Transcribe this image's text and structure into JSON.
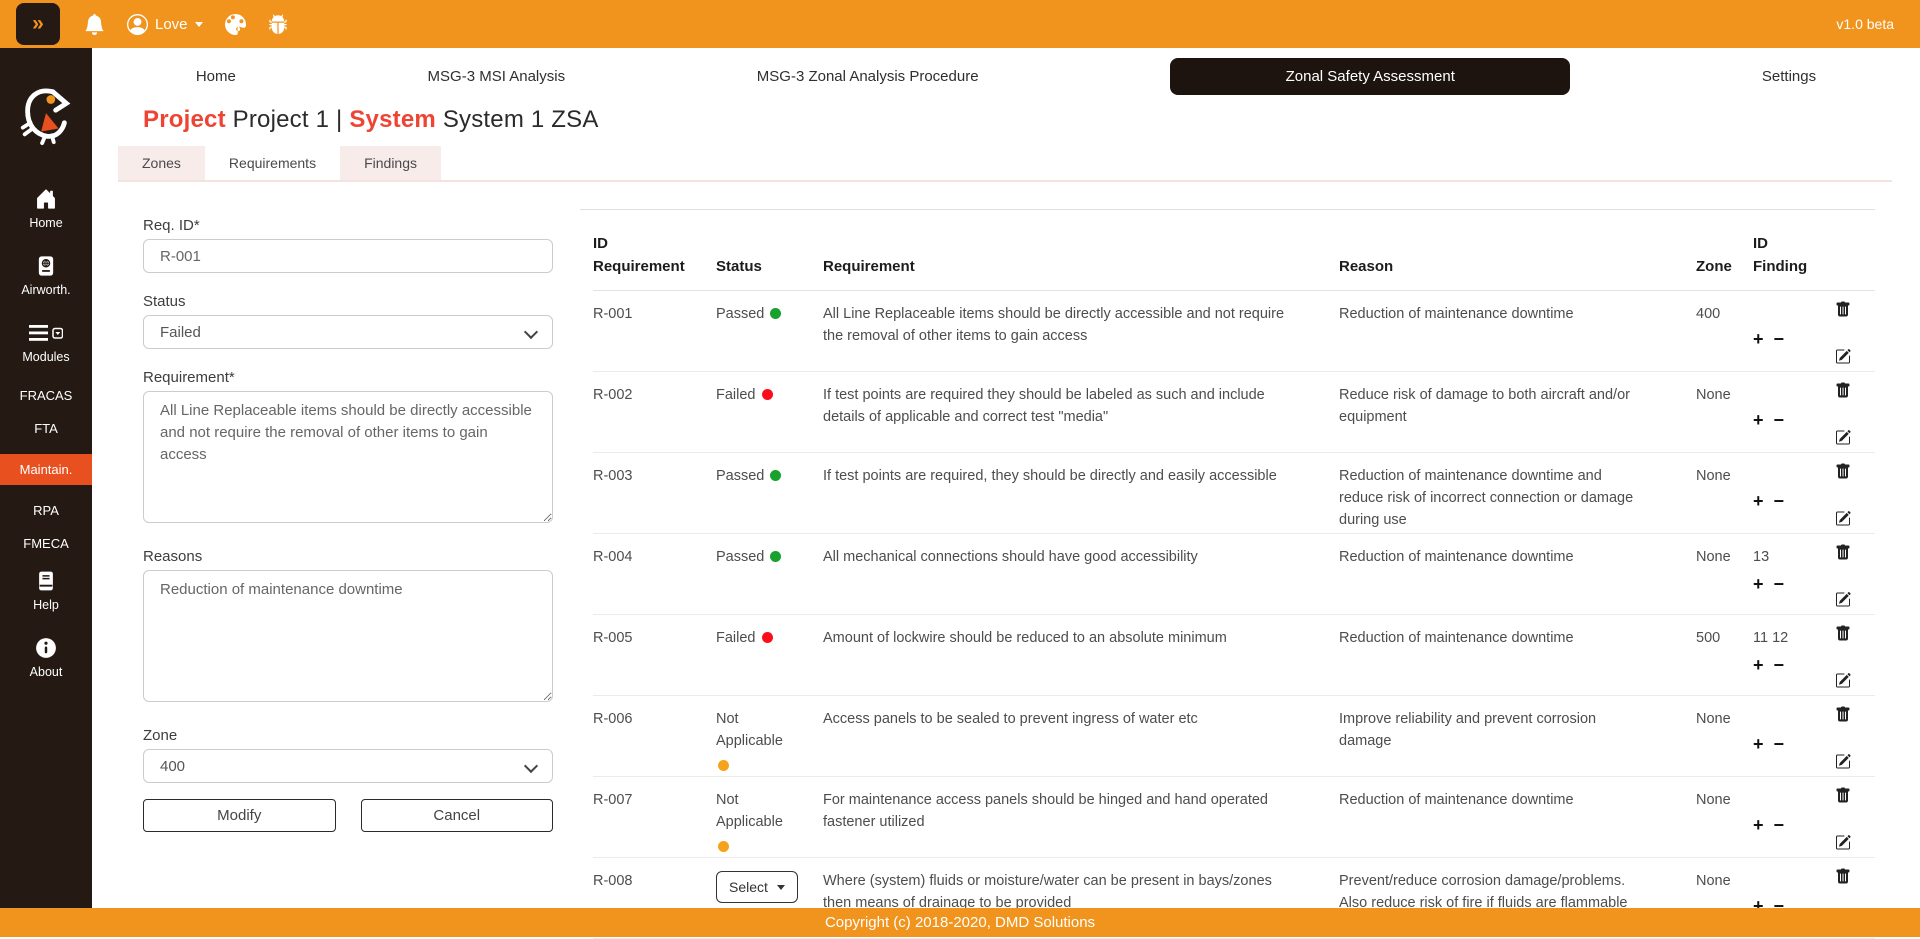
{
  "topbar": {
    "expand_label": "»",
    "user_name": "Love",
    "version": "v1.0 beta"
  },
  "nav": {
    "items": [
      {
        "label": "Home",
        "active": false
      },
      {
        "label": "MSG-3 MSI Analysis",
        "active": false
      },
      {
        "label": "MSG-3 Zonal Analysis Procedure",
        "active": false
      },
      {
        "label": "Zonal Safety Assessment",
        "active": true
      },
      {
        "label": "Settings",
        "active": false
      }
    ]
  },
  "sidebar": {
    "items": [
      {
        "label": "Home",
        "icon": "home-icon",
        "active": false
      },
      {
        "label": "Airworth.",
        "icon": "passport-icon",
        "active": false
      },
      {
        "label": "Modules",
        "icon": "menu-icon",
        "active": false
      },
      {
        "label": "FRACAS",
        "icon": null,
        "active": false
      },
      {
        "label": "FTA",
        "icon": null,
        "active": false
      },
      {
        "label": "Maintain.",
        "icon": null,
        "active": true
      },
      {
        "label": "RPA",
        "icon": null,
        "active": false
      },
      {
        "label": "FMECA",
        "icon": null,
        "active": false
      },
      {
        "label": "Help",
        "icon": "book-icon",
        "active": false
      },
      {
        "label": "About",
        "icon": "info-icon",
        "active": false
      }
    ]
  },
  "page_header": {
    "project_label": "Project",
    "project_value": "Project 1",
    "separator": "|",
    "system_label": "System",
    "system_value": "System 1 ZSA"
  },
  "tabs": [
    {
      "label": "Zones",
      "active": false
    },
    {
      "label": "Requirements",
      "active": true
    },
    {
      "label": "Findings",
      "active": false
    }
  ],
  "form": {
    "req_id_label": "Req. ID*",
    "req_id_value": "R-001",
    "status_label": "Status",
    "status_value": "Failed",
    "requirement_label": "Requirement*",
    "requirement_value": "All Line Replaceable items should be directly accessible and not require the removal of other items to gain access",
    "reasons_label": "Reasons",
    "reasons_value": "Reduction of maintenance downtime",
    "zone_label": "Zone",
    "zone_value": "400",
    "modify_label": "Modify",
    "cancel_label": "Cancel"
  },
  "table": {
    "headers": {
      "id_requirement": [
        "ID",
        "Requirement"
      ],
      "status": "Status",
      "requirement": "Requirement",
      "reason": "Reason",
      "zone": "Zone",
      "id_finding": [
        "ID",
        "Finding"
      ]
    },
    "actions": {
      "add": "+",
      "remove": "−",
      "select_label": "Select"
    },
    "rows": [
      {
        "id": "R-001",
        "status": "Passed",
        "dot": "green",
        "status_select": false,
        "requirement": "All Line Replaceable items should be directly accessible and not require the removal of other items to gain access",
        "reason": "Reduction of maintenance downtime",
        "zone": "400",
        "findings": ""
      },
      {
        "id": "R-002",
        "status": "Failed",
        "dot": "red",
        "status_select": false,
        "requirement": "If test points are required they should be labeled as such and include details of applicable and correct test \"media\"",
        "reason": "Reduce risk of damage to both aircraft and/or equipment",
        "zone": "None",
        "findings": ""
      },
      {
        "id": "R-003",
        "status": "Passed",
        "dot": "green",
        "status_select": false,
        "requirement": "If test points are required, they should be directly and easily accessible",
        "reason": "Reduction of maintenance downtime and reduce risk of incorrect connection or damage during use",
        "zone": "None",
        "findings": ""
      },
      {
        "id": "R-004",
        "status": "Passed",
        "dot": "green",
        "status_select": false,
        "requirement": "All mechanical connections should have good accessibility",
        "reason": "Reduction of maintenance downtime",
        "zone": "None",
        "findings": "13"
      },
      {
        "id": "R-005",
        "status": "Failed",
        "dot": "red",
        "status_select": false,
        "requirement": "Amount of lockwire should be reduced to an absolute minimum",
        "reason": "Reduction of maintenance downtime",
        "zone": "500",
        "findings": "11 12"
      },
      {
        "id": "R-006",
        "status": "Not Applicable",
        "dot": "orange",
        "status_select": false,
        "requirement": "Access panels to be sealed to prevent ingress of water etc",
        "reason": "Improve reliability and prevent corrosion damage",
        "zone": "None",
        "findings": ""
      },
      {
        "id": "R-007",
        "status": "Not Applicable",
        "dot": "orange",
        "status_select": false,
        "requirement": "For maintenance access panels should be hinged and hand operated fastener utilized",
        "reason": "Reduction of maintenance downtime",
        "zone": "None",
        "findings": ""
      },
      {
        "id": "R-008",
        "status": "Select",
        "dot": null,
        "status_select": true,
        "requirement": "Where (system) fluids or moisture/water can be present in bays/zones then means of drainage to be provided",
        "reason": "Prevent/reduce corrosion damage/problems. Also reduce risk of fire if fluids are flammable",
        "zone": "None",
        "findings": ""
      }
    ]
  },
  "footer": {
    "copyright": "Copyright (c) 2018-2020, DMD Solutions"
  },
  "colors": {
    "orange": "#F0941D",
    "dark": "#241A13",
    "accent_red": "#EE4434",
    "active_item": "#E8511F",
    "status_green": "#18A12C",
    "status_red": "#FB0D1B",
    "status_orange": "#F5A31A",
    "tab_pink": "#F8ECEB"
  }
}
